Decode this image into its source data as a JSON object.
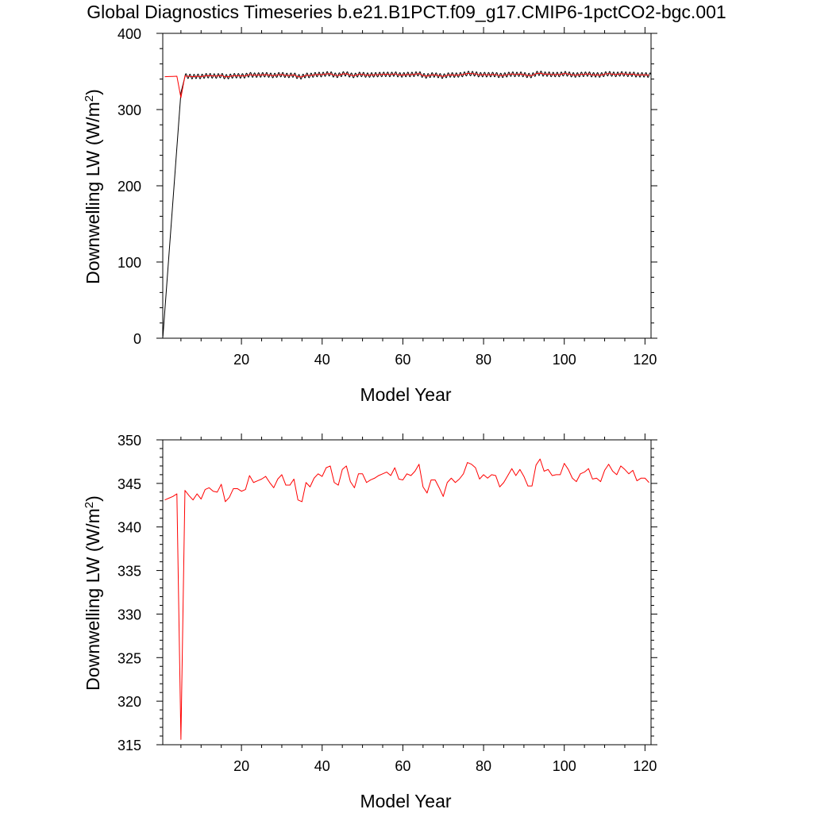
{
  "title": "Global Diagnostics Timeseries b.e21.B1PCT.f09_g17.CMIP6-1pctCO2-bgc.001",
  "colors": {
    "series_black": "#000000",
    "series_red": "#ff0000",
    "axes": "#000000",
    "background": "#ffffff"
  },
  "chart_data": [
    {
      "type": "line",
      "xlabel": "Model Year",
      "ylabel": "Downwelling LW (W/m²)",
      "ylabel_main": "Downwelling LW (W/m",
      "ylabel_sup": "2",
      "ylabel_close": ")",
      "xlim": [
        0.5,
        121.5
      ],
      "ylim": [
        0,
        400
      ],
      "x_ticks": [
        20,
        40,
        60,
        80,
        100,
        120
      ],
      "x_tick_labels": [
        "20",
        "40",
        "60",
        "80",
        "100",
        "120"
      ],
      "y_ticks": [
        0,
        100,
        200,
        300,
        400
      ],
      "y_tick_labels": [
        "0",
        "100",
        "200",
        "300",
        "400"
      ],
      "grid": false,
      "series": [
        {
          "color": "#000000",
          "style": "monthly",
          "monthly_amplitude": 3,
          "x": [
            0.54,
            5.0,
            6.0
          ],
          "y": [
            2,
            322,
            343
          ]
        },
        {
          "color": "#ff0000",
          "style": "annual",
          "x": [
            1,
            2,
            3,
            4,
            5,
            6,
            7,
            8,
            9,
            10,
            11,
            12,
            13,
            14,
            15,
            16,
            17,
            18,
            19,
            20,
            21,
            22,
            23,
            24,
            25,
            26,
            27,
            28,
            29,
            30,
            31,
            32,
            33,
            34,
            35,
            36,
            37,
            38,
            39,
            40,
            41,
            42,
            43,
            44,
            45,
            46,
            47,
            48,
            49,
            50,
            51,
            52,
            53,
            54,
            55,
            56,
            57,
            58,
            59,
            60,
            61,
            62,
            63,
            64,
            65,
            66,
            67,
            68,
            69,
            70,
            71,
            72,
            73,
            74,
            75,
            76,
            77,
            78,
            79,
            80,
            81,
            82,
            83,
            84,
            85,
            86,
            87,
            88,
            89,
            90,
            91,
            92,
            93,
            94,
            95,
            96,
            97,
            98,
            99,
            100,
            101,
            102,
            103,
            104,
            105,
            106,
            107,
            108,
            109,
            110,
            111,
            112,
            113,
            114,
            115,
            116,
            117,
            118,
            119,
            120,
            121
          ],
          "y": [
            343.1,
            343.3,
            343.5,
            343.8,
            315.6,
            344.2,
            343.6,
            343.1,
            343.8,
            343.2,
            344.3,
            344.5,
            344.1,
            344.0,
            344.9,
            342.9,
            343.4,
            344.4,
            344.4,
            344.1,
            344.3,
            345.9,
            345.1,
            345.3,
            345.5,
            345.8,
            345.1,
            344.5,
            345.5,
            346.0,
            344.8,
            344.8,
            345.5,
            343.1,
            342.9,
            345.1,
            344.6,
            345.6,
            346.1,
            345.8,
            346.8,
            347.0,
            345.1,
            344.8,
            346.6,
            347.0,
            345.2,
            344.5,
            346.1,
            346.1,
            345.1,
            345.4,
            345.6,
            345.9,
            346.1,
            346.3,
            345.9,
            346.8,
            345.5,
            345.4,
            346.1,
            345.9,
            346.4,
            347.2,
            344.6,
            343.9,
            345.4,
            345.4,
            344.5,
            343.5,
            345.1,
            345.6,
            345.1,
            345.5,
            346.1,
            347.4,
            347.2,
            346.8,
            345.5,
            346.0,
            345.6,
            346.0,
            345.9,
            344.6,
            345.1,
            345.9,
            346.7,
            345.9,
            346.6,
            345.8,
            344.7,
            344.7,
            347.1,
            347.8,
            346.4,
            346.6,
            345.9,
            346.0,
            346.0,
            347.3,
            346.6,
            345.6,
            345.2,
            346.1,
            346.3,
            346.7,
            345.5,
            345.6,
            345.2,
            346.5,
            347.2,
            346.4,
            346.0,
            347.0,
            346.6,
            346.1,
            346.5,
            345.3,
            345.6,
            345.6,
            345.1
          ]
        }
      ]
    },
    {
      "type": "line",
      "xlabel": "Model Year",
      "ylabel": "Downwelling LW (W/m²)",
      "ylabel_main": "Downwelling LW (W/m",
      "ylabel_sup": "2",
      "ylabel_close": ")",
      "xlim": [
        0.5,
        121.5
      ],
      "ylim": [
        315,
        350
      ],
      "x_ticks": [
        20,
        40,
        60,
        80,
        100,
        120
      ],
      "x_tick_labels": [
        "20",
        "40",
        "60",
        "80",
        "100",
        "120"
      ],
      "y_ticks": [
        315,
        320,
        325,
        330,
        335,
        340,
        345,
        350
      ],
      "y_tick_labels": [
        "315",
        "320",
        "325",
        "330",
        "335",
        "340",
        "345",
        "350"
      ],
      "grid": false,
      "series": [
        {
          "color": "#ff0000",
          "style": "annual",
          "x": [
            1,
            2,
            3,
            4,
            5,
            6,
            7,
            8,
            9,
            10,
            11,
            12,
            13,
            14,
            15,
            16,
            17,
            18,
            19,
            20,
            21,
            22,
            23,
            24,
            25,
            26,
            27,
            28,
            29,
            30,
            31,
            32,
            33,
            34,
            35,
            36,
            37,
            38,
            39,
            40,
            41,
            42,
            43,
            44,
            45,
            46,
            47,
            48,
            49,
            50,
            51,
            52,
            53,
            54,
            55,
            56,
            57,
            58,
            59,
            60,
            61,
            62,
            63,
            64,
            65,
            66,
            67,
            68,
            69,
            70,
            71,
            72,
            73,
            74,
            75,
            76,
            77,
            78,
            79,
            80,
            81,
            82,
            83,
            84,
            85,
            86,
            87,
            88,
            89,
            90,
            91,
            92,
            93,
            94,
            95,
            96,
            97,
            98,
            99,
            100,
            101,
            102,
            103,
            104,
            105,
            106,
            107,
            108,
            109,
            110,
            111,
            112,
            113,
            114,
            115,
            116,
            117,
            118,
            119,
            120,
            121
          ],
          "y": [
            343.1,
            343.3,
            343.5,
            343.8,
            315.6,
            344.2,
            343.6,
            343.1,
            343.8,
            343.2,
            344.3,
            344.5,
            344.1,
            344.0,
            344.9,
            342.9,
            343.4,
            344.4,
            344.4,
            344.1,
            344.3,
            345.9,
            345.1,
            345.3,
            345.5,
            345.8,
            345.1,
            344.5,
            345.5,
            346.0,
            344.8,
            344.8,
            345.5,
            343.1,
            342.9,
            345.1,
            344.6,
            345.6,
            346.1,
            345.8,
            346.8,
            347.0,
            345.1,
            344.8,
            346.6,
            347.0,
            345.2,
            344.5,
            346.1,
            346.1,
            345.1,
            345.4,
            345.6,
            345.9,
            346.1,
            346.3,
            345.9,
            346.8,
            345.5,
            345.4,
            346.1,
            345.9,
            346.4,
            347.2,
            344.6,
            343.9,
            345.4,
            345.4,
            344.5,
            343.5,
            345.1,
            345.6,
            345.1,
            345.5,
            346.1,
            347.4,
            347.2,
            346.8,
            345.5,
            346.0,
            345.6,
            346.0,
            345.9,
            344.6,
            345.1,
            345.9,
            346.7,
            345.9,
            346.6,
            345.8,
            344.7,
            344.7,
            347.1,
            347.8,
            346.4,
            346.6,
            345.9,
            346.0,
            346.0,
            347.3,
            346.6,
            345.6,
            345.2,
            346.1,
            346.3,
            346.7,
            345.5,
            345.6,
            345.2,
            346.5,
            347.2,
            346.4,
            346.0,
            347.0,
            346.6,
            346.1,
            346.5,
            345.3,
            345.6,
            345.6,
            345.1
          ]
        }
      ]
    }
  ]
}
